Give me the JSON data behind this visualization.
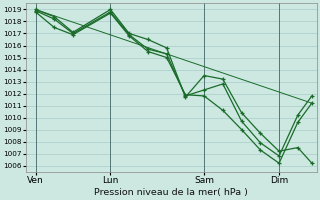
{
  "title": "Pression niveau de la mer( hPa )",
  "bg_color": "#cce8e0",
  "grid_color": "#aacccc",
  "line_color": "#1a6b2a",
  "ylim": [
    1005.5,
    1019.5
  ],
  "yticks": [
    1006,
    1007,
    1008,
    1009,
    1010,
    1011,
    1012,
    1013,
    1014,
    1015,
    1016,
    1017,
    1018,
    1019
  ],
  "xtick_labels": [
    "Ven",
    "Lun",
    "Sam",
    "Dim"
  ],
  "xtick_positions": [
    0,
    32,
    72,
    104
  ],
  "xlim": [
    -4,
    120
  ],
  "vline_positions": [
    0,
    32,
    72,
    104
  ],
  "line1_x": [
    0,
    8,
    16,
    32,
    40,
    48,
    56,
    64,
    72,
    80,
    88,
    96,
    104,
    112,
    118
  ],
  "line1_y": [
    1019.0,
    1018.4,
    1017.1,
    1019.0,
    1017.0,
    1016.5,
    1015.8,
    1011.7,
    1013.5,
    1013.2,
    1010.4,
    1008.7,
    1007.2,
    1007.5,
    1006.2
  ],
  "line2_x": [
    0,
    8,
    16,
    32,
    40,
    48,
    56,
    64,
    72,
    80,
    88,
    96,
    104,
    112,
    118
  ],
  "line2_y": [
    1018.8,
    1017.5,
    1016.9,
    1018.7,
    1016.8,
    1015.5,
    1015.0,
    1011.9,
    1011.8,
    1010.6,
    1009.0,
    1007.3,
    1006.2,
    1009.6,
    1011.2
  ],
  "line3_x": [
    0,
    8,
    16,
    32,
    40,
    48,
    56,
    64,
    72,
    80,
    88,
    96,
    104,
    112,
    118
  ],
  "line3_y": [
    1018.9,
    1018.2,
    1017.0,
    1018.8,
    1016.9,
    1015.7,
    1015.3,
    1011.8,
    1012.3,
    1012.8,
    1009.7,
    1007.9,
    1006.8,
    1010.2,
    1011.8
  ],
  "trend_x": [
    0,
    118
  ],
  "trend_y": [
    1019.0,
    1011.2
  ]
}
